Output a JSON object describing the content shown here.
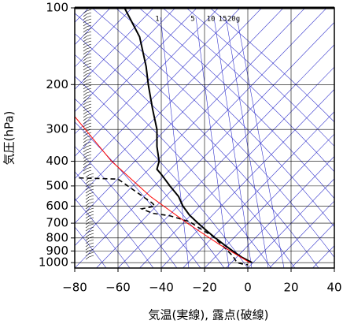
{
  "chart_data": {
    "type": "line",
    "xlabel": "気温(実線), 露点(破線)",
    "ylabel": "気圧(hPa)",
    "xlim": [
      -80,
      40
    ],
    "xticks": [
      {
        "value": -80,
        "label": "−80"
      },
      {
        "value": -60,
        "label": "−60"
      },
      {
        "value": -40,
        "label": "−40"
      },
      {
        "value": -20,
        "label": "−20"
      },
      0,
      20,
      40
    ],
    "ylim": [
      100,
      1050
    ],
    "yticks": [
      100,
      200,
      300,
      400,
      500,
      600,
      700,
      800,
      900,
      1000
    ],
    "log_y": true,
    "inverted_y": true,
    "grid": true,
    "mixing_ratio_labels": [
      "1",
      "5",
      "10",
      "15",
      "20g"
    ],
    "series": [
      {
        "color": "#000000",
        "style": "solid",
        "y": [
          100,
          130,
          170,
          200,
          250,
          300,
          350,
          400,
          430,
          450,
          500,
          550,
          600,
          650,
          700,
          750,
          800,
          850,
          900,
          950,
          1000
        ],
        "x": [
          -57,
          -50,
          -47,
          -46,
          -44,
          -42,
          -42,
          -41,
          -42,
          -40,
          -36,
          -32,
          -30,
          -27,
          -23,
          -19,
          -15,
          -11,
          -7,
          -3,
          2
        ]
      },
      {
        "color": "#000000",
        "style": "dashed",
        "y": [
          465,
          470,
          585,
          600,
          615,
          640,
          655,
          690,
          735,
          790,
          870,
          940,
          1000,
          1010,
          1020
        ],
        "x": [
          -78,
          -60,
          -44,
          -43,
          -49,
          -44,
          -36,
          -27,
          -22,
          -16,
          -11,
          -7,
          -5,
          -3,
          0
        ]
      },
      {
        "color": "#ff0000",
        "style": "solid",
        "y": [
          267,
          400,
          550,
          700,
          850,
          1000
        ],
        "x": [
          -80,
          -63,
          -45,
          -28,
          -13,
          1
        ]
      }
    ]
  }
}
